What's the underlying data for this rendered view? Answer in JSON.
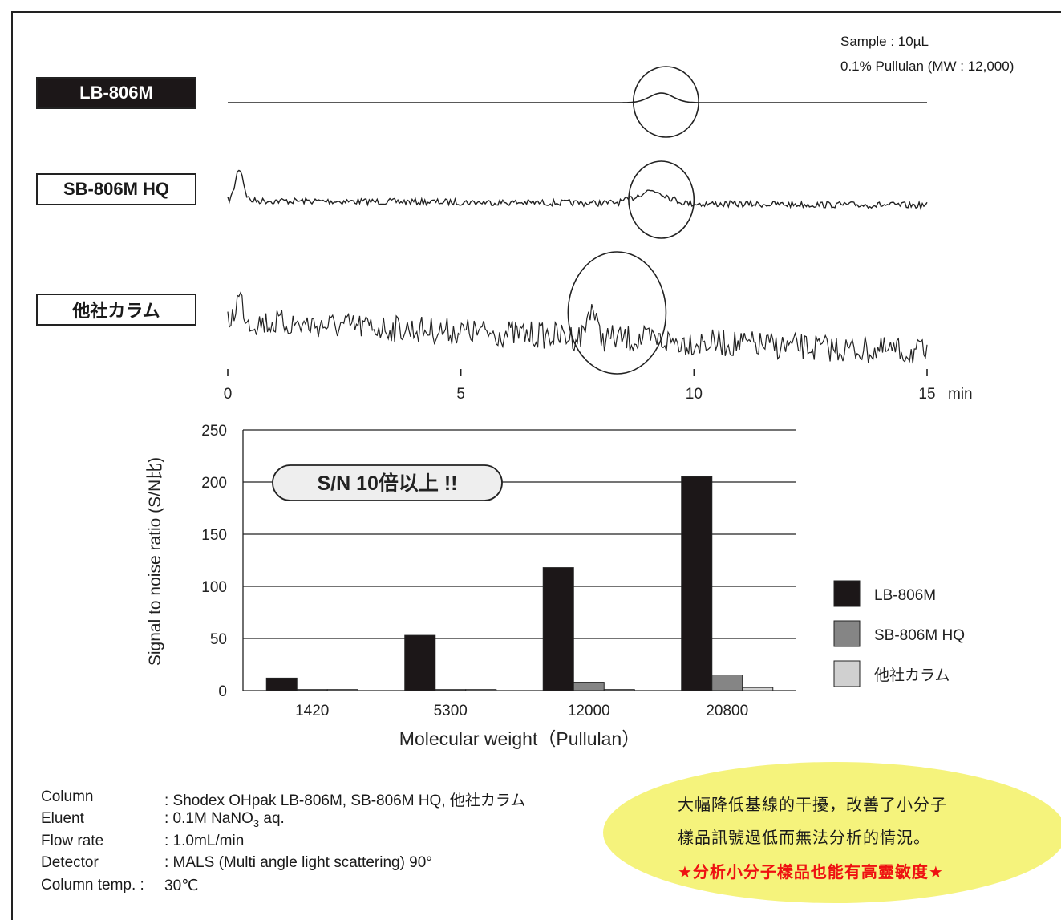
{
  "sample_info": [
    "Sample : 10µL",
    "0.1% Pullulan (MW : 12,000)"
  ],
  "columns": [
    {
      "label": "LB-806M",
      "style": "filled"
    },
    {
      "label": "SB-806M HQ",
      "style": "outlined"
    },
    {
      "label": "他社カラム",
      "style": "outlined"
    }
  ],
  "chromatogram": {
    "x_ticks": [
      "0",
      "5",
      "10",
      "15"
    ],
    "x_unit": "min",
    "xlim": [
      0,
      15
    ],
    "highlight_windows_min": [
      [
        8.7,
        10.1
      ],
      [
        8.6,
        10.0
      ],
      [
        7.3,
        9.4
      ]
    ]
  },
  "chart_data": {
    "type": "bar",
    "categories": [
      "1420",
      "5300",
      "12000",
      "20800"
    ],
    "series": [
      {
        "name": "LB-806M",
        "color": "#1c1718",
        "values": [
          12,
          53,
          118,
          205
        ]
      },
      {
        "name": "SB-806M HQ",
        "color": "#858585",
        "values": [
          1,
          1,
          8,
          15
        ]
      },
      {
        "name": "他社カラム",
        "color": "#d0d0d0",
        "values": [
          1,
          1,
          1,
          3
        ]
      }
    ],
    "ylabel": "Signal to noise ratio (S/N比)",
    "xlabel": "Molecular weight（Pullulan）",
    "ylim": [
      0,
      250
    ],
    "yticks": [
      0,
      50,
      100,
      150,
      200,
      250
    ],
    "grid": true,
    "legend": "right",
    "annotation": "S/N 10倍以上 !!"
  },
  "conditions": [
    {
      "name": "Column",
      "value": ": Shodex OHpak LB-806M, SB-806M HQ, 他社カラム"
    },
    {
      "name": "Eluent",
      "value": ": 0.1M NaNO",
      "sub": "3",
      "suffix": " aq."
    },
    {
      "name": "Flow rate",
      "value": ": 1.0mL/min"
    },
    {
      "name": "Detector",
      "value": ": MALS (Multi angle light scattering) 90°"
    },
    {
      "name": "Column temp. :",
      "value": "30℃"
    }
  ],
  "callout": {
    "lines": [
      "大幅降低基線的干擾，改善了小分子",
      "樣品訊號過低而無法分析的情況。"
    ],
    "highlight": "★分析小分子樣品也能有高靈敏度★",
    "highlight_color": "#ee1111",
    "bg_color": "#f5f37c"
  }
}
